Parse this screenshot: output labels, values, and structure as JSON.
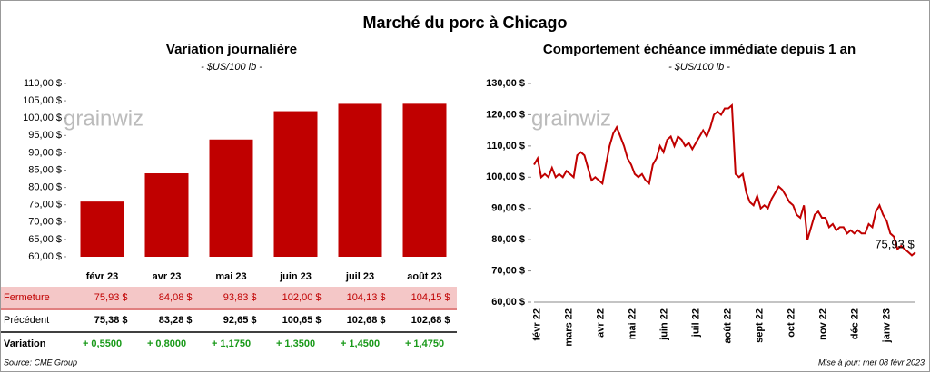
{
  "title": "Marché du porc à Chicago",
  "watermark": "grainwiz",
  "chart_data": [
    {
      "type": "bar",
      "title": "Variation journalière",
      "subtitle": "- $US/100 lb -",
      "categories": [
        "févr 23",
        "avr 23",
        "mai 23",
        "juin 23",
        "juil 23",
        "août 23"
      ],
      "values": [
        75.93,
        84.08,
        93.83,
        102.0,
        104.13,
        104.15
      ],
      "value_labels": [
        "75,93 $",
        "84,08 $",
        "93,83 $",
        "102,00 $",
        "104,13 $",
        "104,15 $"
      ],
      "color": "#c00000",
      "ylim": [
        60,
        110
      ],
      "yticks": [
        {
          "value": 60,
          "label": "60,00 $"
        },
        {
          "value": 65,
          "label": "65,00 $"
        },
        {
          "value": 70,
          "label": "70,00 $"
        },
        {
          "value": 75,
          "label": "75,00 $"
        },
        {
          "value": 80,
          "label": "80,00 $"
        },
        {
          "value": 85,
          "label": "85,00 $"
        },
        {
          "value": 90,
          "label": "90,00 $"
        },
        {
          "value": 95,
          "label": "95,00 $"
        },
        {
          "value": 100,
          "label": "100,00 $"
        },
        {
          "value": 105,
          "label": "105,00 $"
        },
        {
          "value": 110,
          "label": "110,00 $"
        }
      ]
    },
    {
      "type": "line",
      "title": "Comportement  échéance immédiate depuis 1 an",
      "subtitle": "- $US/100 lb -",
      "x_labels": [
        "févr 22",
        "mars 22",
        "avr 22",
        "mai 22",
        "juin 22",
        "juil 22",
        "août 22",
        "sept 22",
        "oct 22",
        "nov 22",
        "déc 22",
        "janv 23"
      ],
      "values": [
        104,
        106,
        100,
        101,
        100,
        103,
        100,
        101,
        100,
        102,
        101,
        100,
        107,
        108,
        107,
        103,
        99,
        100,
        99,
        98,
        104,
        110,
        114,
        116,
        113,
        110,
        106,
        104,
        101,
        100,
        101,
        99,
        98,
        104,
        106,
        110,
        108,
        112,
        113,
        110,
        113,
        112,
        110,
        111,
        109,
        111,
        113,
        115,
        113,
        116,
        120,
        121,
        120,
        122,
        122,
        123,
        101,
        100,
        101,
        95,
        92,
        91,
        94,
        90,
        91,
        90,
        93,
        95,
        97,
        96,
        94,
        92,
        91,
        88,
        87,
        91,
        80,
        84,
        88,
        89,
        87,
        87,
        84,
        85,
        83,
        84,
        84,
        82,
        83,
        82,
        83,
        82,
        82,
        85,
        84,
        89,
        91,
        88,
        86,
        82,
        81,
        77,
        78,
        77,
        76,
        75,
        75.93
      ],
      "color": "#c00000",
      "ylim": [
        60,
        130
      ],
      "yticks": [
        {
          "value": 60,
          "label": "60,00 $"
        },
        {
          "value": 70,
          "label": "70,00 $"
        },
        {
          "value": 80,
          "label": "80,00 $"
        },
        {
          "value": 90,
          "label": "90,00 $"
        },
        {
          "value": 100,
          "label": "100,00 $"
        },
        {
          "value": 110,
          "label": "110,00 $"
        },
        {
          "value": 120,
          "label": "120,00 $"
        },
        {
          "value": 130,
          "label": "130,00 $"
        }
      ],
      "annotation": "75,93 $"
    }
  ],
  "table": {
    "fermeture_label": "Fermeture",
    "rows": [
      {
        "label": "Précédent",
        "cells": [
          "75,38 $",
          "83,28 $",
          "92,65 $",
          "100,65 $",
          "102,68 $",
          "102,68 $"
        ]
      },
      {
        "label": "Variation",
        "cells": [
          "+ 0,5500",
          "+ 0,8000",
          "+ 1,1750",
          "+ 1,3500",
          "+ 1,4500",
          "+ 1,4750"
        ]
      }
    ]
  },
  "source": "Source: CME Group",
  "updated": "Mise à jour: mer 08 févr 2023"
}
